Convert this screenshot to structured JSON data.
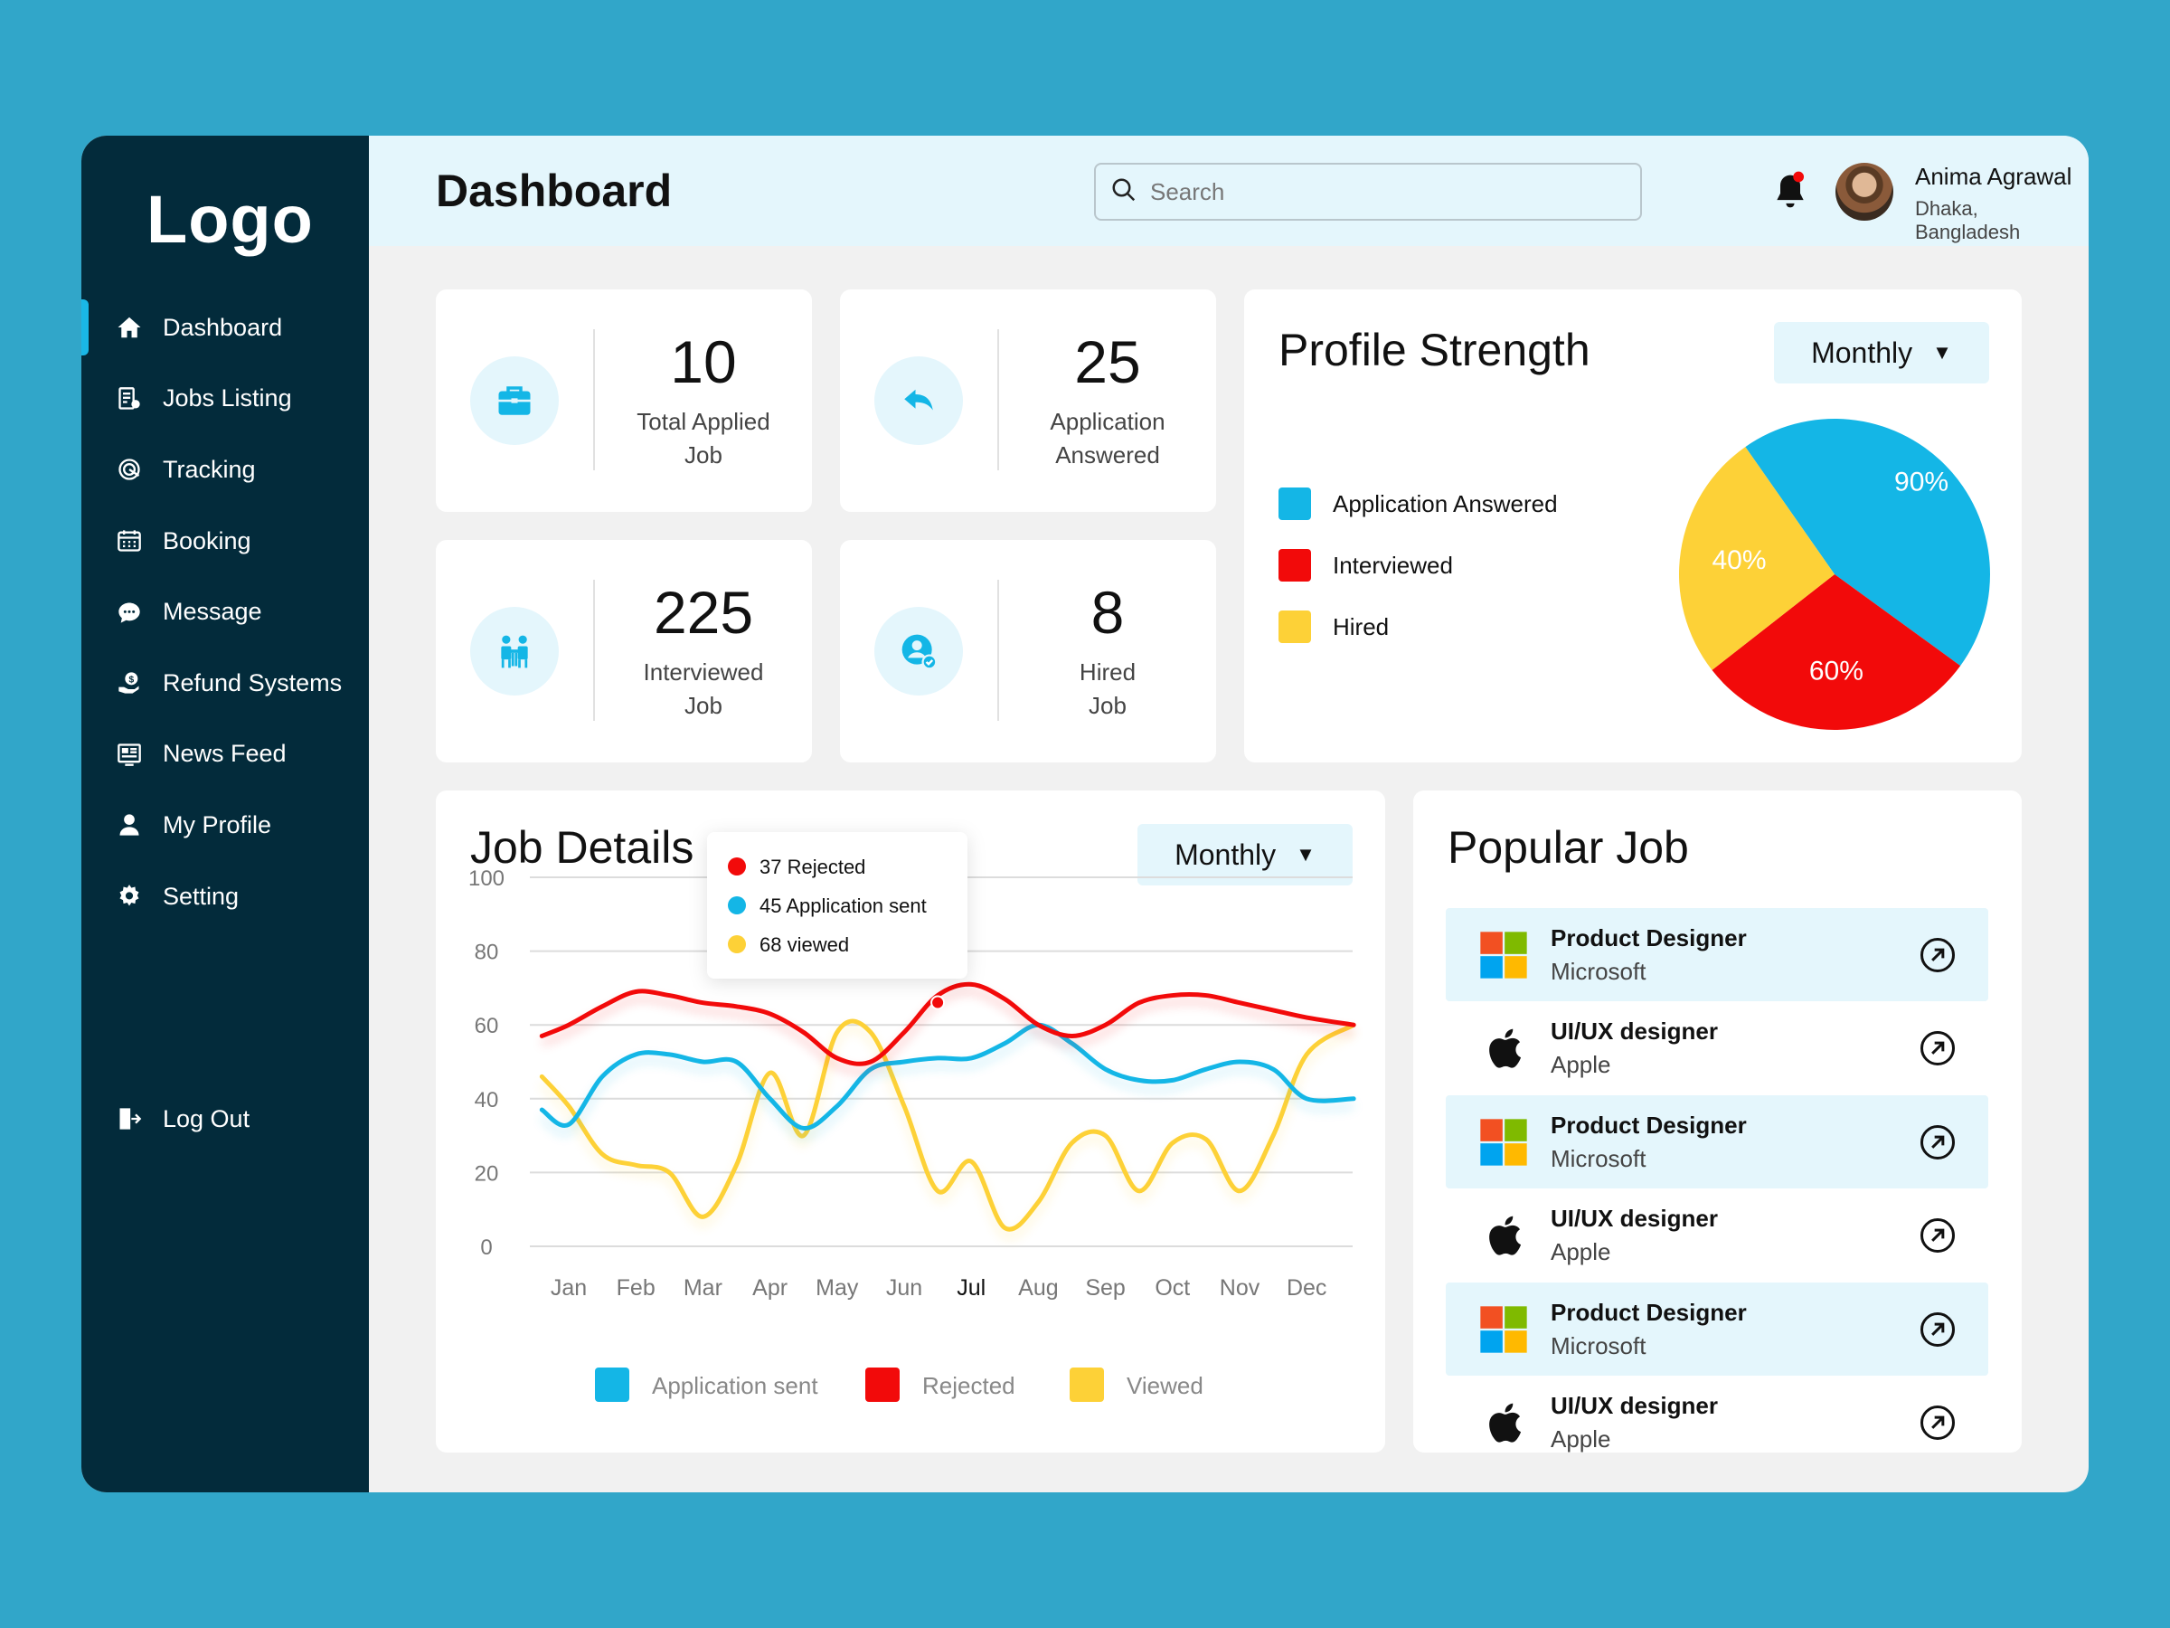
{
  "sidebar": {
    "logo": "Logo",
    "items": [
      {
        "label": "Dashboard",
        "icon": "home-icon"
      },
      {
        "label": "Jobs Listing",
        "icon": "jobs-list-icon"
      },
      {
        "label": "Tracking",
        "icon": "tracking-icon"
      },
      {
        "label": "Booking",
        "icon": "calendar-icon"
      },
      {
        "label": "Message",
        "icon": "chat-icon"
      },
      {
        "label": "Refund Systems",
        "icon": "refund-icon"
      },
      {
        "label": "News Feed",
        "icon": "news-icon"
      },
      {
        "label": "My Profile",
        "icon": "user-icon"
      },
      {
        "label": "Setting",
        "icon": "gear-icon"
      }
    ],
    "logout": "Log Out"
  },
  "header": {
    "title": "Dashboard",
    "search_placeholder": "Search",
    "user_name": "Anima Agrawal",
    "user_location": "Dhaka, Bangladesh"
  },
  "stats": [
    {
      "value": "10",
      "label_line1": "Total Applied",
      "label_line2": "Job",
      "icon": "briefcase-icon"
    },
    {
      "value": "25",
      "label_line1": "Application",
      "label_line2": "Answered",
      "icon": "reply-icon"
    },
    {
      "value": "225",
      "label_line1": "Interviewed",
      "label_line2": "Job",
      "icon": "interview-icon"
    },
    {
      "value": "8",
      "label_line1": "Hired",
      "label_line2": "Job",
      "icon": "hired-user-icon"
    }
  ],
  "profile_strength": {
    "title": "Profile Strength",
    "period": "Monthly",
    "legend": [
      "Application Answered",
      "Interviewed",
      "Hired"
    ]
  },
  "job_details": {
    "title": "Job Details",
    "period": "Monthly",
    "tooltip": [
      "37 Rejected",
      "45 Application sent",
      "68 viewed"
    ]
  },
  "popular_job": {
    "title": "Popular Job",
    "jobs": [
      {
        "title": "Product Designer",
        "company": "Microsoft",
        "logo": "microsoft-logo-icon",
        "highlight": true
      },
      {
        "title": "UI/UX designer",
        "company": "Apple",
        "logo": "apple-logo-icon",
        "highlight": false
      },
      {
        "title": "Product Designer",
        "company": "Microsoft",
        "logo": "microsoft-logo-icon",
        "highlight": true
      },
      {
        "title": "UI/UX designer",
        "company": "Apple",
        "logo": "apple-logo-icon",
        "highlight": false
      },
      {
        "title": "Product Designer",
        "company": "Microsoft",
        "logo": "microsoft-logo-icon",
        "highlight": true
      },
      {
        "title": "UI/UX designer",
        "company": "Apple",
        "logo": "apple-logo-icon",
        "highlight": false
      }
    ]
  },
  "colors": {
    "sidebar": "#032b3b",
    "accent": "#1ab7e6",
    "blue": "#14b6e6",
    "red": "#f20a0a",
    "yellow": "#fdd137"
  },
  "chart_data": [
    {
      "type": "pie",
      "title": "",
      "labels": [
        "Application Answered",
        "Interviewed",
        "Hired"
      ],
      "slice_labels": [
        "90%",
        "60%",
        "40%"
      ],
      "values": [
        90,
        60,
        40
      ],
      "colors": [
        "#14b6e6",
        "#f20a0a",
        "#fdd137"
      ]
    },
    {
      "type": "line",
      "title": "",
      "categories": [
        "Jan",
        "Feb",
        "Mar",
        "Apr",
        "May",
        "Jun",
        "Jul",
        "Aug",
        "Sep",
        "Oct",
        "Nov",
        "Dec"
      ],
      "x": [
        0.6,
        1,
        1.5,
        2,
        2.5,
        3,
        3.5,
        4,
        4.5,
        5,
        5.5,
        6,
        6.5,
        7,
        7.5,
        8,
        8.5,
        9,
        9.5,
        10,
        10.5,
        11,
        11.5,
        12,
        12.7
      ],
      "ylim": [
        0,
        100
      ],
      "yticks": [
        0,
        20,
        40,
        60,
        80,
        100
      ],
      "series": [
        {
          "name": "Application sent",
          "color": "#14b6e6",
          "values": [
            37,
            33,
            46,
            52,
            52,
            50,
            50,
            40,
            32,
            38,
            48,
            50,
            51,
            51,
            55,
            60,
            55,
            48,
            45,
            45,
            48,
            50,
            48,
            40,
            40
          ]
        },
        {
          "name": "Rejected",
          "color": "#f20a0a",
          "values": [
            57,
            60,
            65,
            69,
            68,
            66,
            65,
            63,
            58,
            51,
            50,
            58,
            68,
            71,
            67,
            60,
            57,
            60,
            66,
            68,
            68,
            66,
            64,
            62,
            60
          ]
        },
        {
          "name": "Viewed",
          "color": "#fdd137",
          "values": [
            46,
            38,
            25,
            22,
            20,
            8,
            22,
            47,
            30,
            58,
            58,
            38,
            15,
            23,
            5,
            12,
            28,
            30,
            15,
            28,
            29,
            15,
            30,
            52,
            60
          ]
        }
      ],
      "legend": [
        "Application sent",
        "Rejected",
        "Viewed"
      ],
      "legend_position": "bottom",
      "grid": true,
      "highlight_category": "Jul"
    }
  ]
}
